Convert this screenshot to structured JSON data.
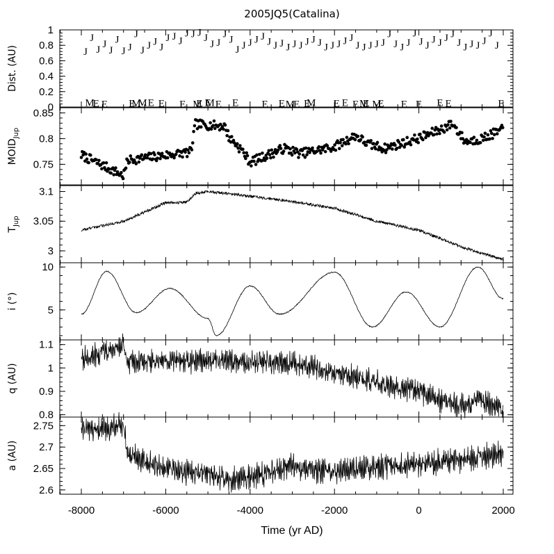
{
  "chart_data": {
    "type": "line",
    "title": "2005JQ5(Catalina)",
    "xlabel": "Time (yr AD)",
    "xlim": [
      -8000,
      2000
    ],
    "xticks": [
      -8000,
      -6000,
      -4000,
      -2000,
      0,
      2000
    ],
    "panels": [
      {
        "id": "dist",
        "ylabel": "Dist. (AU)",
        "type": "scatter",
        "ylim": [
          0,
          1
        ],
        "yticks": [
          0,
          0.2,
          0.4,
          0.6,
          0.8,
          1
        ],
        "series": [
          {
            "name": "J",
            "x": [
              -7900,
              -7750,
              -7600,
              -7450,
              -7300,
              -7150,
              -7000,
              -6850,
              -6700,
              -6550,
              -6400,
              -6250,
              -6100,
              -5950,
              -5800,
              -5650,
              -5500,
              -5350,
              -5200,
              -5050,
              -4900,
              -4750,
              -4600,
              -4450,
              -4300,
              -4150,
              -4000,
              -3850,
              -3700,
              -3550,
              -3400,
              -3250,
              -3100,
              -2950,
              -2800,
              -2650,
              -2500,
              -2350,
              -2200,
              -2050,
              -1900,
              -1750,
              -1600,
              -1450,
              -1300,
              -1150,
              -1000,
              -850,
              -700,
              -550,
              -400,
              -250,
              -100,
              50,
              200,
              350,
              500,
              650,
              800,
              950,
              1100,
              1250,
              1400,
              1550,
              1700,
              1850
            ],
            "y": [
              0.72,
              0.9,
              0.75,
              0.82,
              0.74,
              0.88,
              0.73,
              0.78,
              0.95,
              0.74,
              0.8,
              0.85,
              0.78,
              0.9,
              0.92,
              0.86,
              0.96,
              0.95,
              0.97,
              0.9,
              0.82,
              0.84,
              0.95,
              0.88,
              0.75,
              0.8,
              0.84,
              0.88,
              0.92,
              0.85,
              0.8,
              0.83,
              0.78,
              0.82,
              0.8,
              0.85,
              0.88,
              0.84,
              0.78,
              0.8,
              0.82,
              0.86,
              0.9,
              0.8,
              0.78,
              0.8,
              0.82,
              0.84,
              0.95,
              0.82,
              0.78,
              0.84,
              0.96,
              0.85,
              0.8,
              0.88,
              0.84,
              0.9,
              0.95,
              0.84,
              0.78,
              0.82,
              0.8,
              0.86,
              0.96,
              0.8
            ]
          },
          {
            "name": "M",
            "x": [
              -7800,
              -6700,
              -6550,
              -5250,
              -4950,
              -3050,
              -2550,
              -1300,
              -1000
            ],
            "y": [
              0.06,
              0.05,
              0.06,
              0.04,
              0.06,
              0.04,
              0.06,
              0.05,
              0.04
            ]
          },
          {
            "name": "E",
            "x": [
              -7650,
              -7450,
              -6800,
              -6350,
              -6100,
              -5600,
              -5200,
              -5000,
              -4750,
              -4350,
              -3650,
              -3250,
              -2900,
              -2650,
              -1950,
              -1750,
              -1500,
              -1250,
              -900,
              -350,
              0,
              500,
              700,
              1950
            ],
            "y": [
              0.05,
              0.04,
              0.05,
              0.06,
              0.05,
              0.04,
              0.05,
              0.06,
              0.04,
              0.06,
              0.04,
              0.05,
              0.04,
              0.05,
              0.05,
              0.06,
              0.04,
              0.05,
              0.05,
              0.04,
              0.04,
              0.06,
              0.05,
              0.05
            ]
          }
        ]
      },
      {
        "id": "moid",
        "ylabel": "MOID",
        "ylabel_sub": "Jup",
        "type": "scatter",
        "ylim": [
          0.71,
          0.86
        ],
        "yticks": [
          0.75,
          0.8,
          0.85
        ],
        "x": [
          -8000,
          -7000,
          -6900,
          -5400,
          -5300,
          -4600,
          -4500,
          -4200,
          -4000,
          -3200,
          -2800,
          -2000,
          -1500,
          -1200,
          -800,
          0,
          500,
          800,
          1100,
          1500,
          2000
        ],
        "y": [
          0.768,
          0.728,
          0.758,
          0.774,
          0.828,
          0.824,
          0.803,
          0.778,
          0.754,
          0.781,
          0.771,
          0.784,
          0.806,
          0.789,
          0.781,
          0.801,
          0.817,
          0.829,
          0.794,
          0.8,
          0.818
        ]
      },
      {
        "id": "tjup",
        "ylabel": "T",
        "ylabel_sub": "Jup",
        "type": "line",
        "ylim": [
          2.98,
          3.11
        ],
        "yticks": [
          3,
          3.05,
          3.1
        ],
        "x": [
          -8000,
          -7000,
          -6000,
          -5500,
          -5300,
          -5000,
          -4000,
          -3000,
          -2000,
          -1000,
          0,
          1000,
          2000
        ],
        "y": [
          3.035,
          3.05,
          3.081,
          3.082,
          3.097,
          3.1,
          3.092,
          3.083,
          3.072,
          3.05,
          3.035,
          3.007,
          2.985
        ]
      },
      {
        "id": "incl",
        "ylabel": "i (°)",
        "type": "line",
        "ylim": [
          1.5,
          10.5
        ],
        "yticks": [
          5,
          10
        ],
        "x": [
          -8000,
          -7400,
          -6700,
          -5900,
          -5000,
          -4800,
          -4000,
          -3300,
          -2000,
          -1100,
          -300,
          500,
          1400,
          2000
        ],
        "y": [
          4.5,
          9.5,
          4.7,
          7.5,
          4.0,
          2.0,
          7.8,
          4.5,
          9.4,
          3.0,
          7.1,
          3.0,
          10.0,
          6.3
        ]
      },
      {
        "id": "q",
        "ylabel": "q (AU)",
        "type": "line",
        "ylim": [
          0.79,
          1.12
        ],
        "yticks": [
          0.8,
          0.9,
          1,
          1.1
        ],
        "x": [
          -8000,
          -7000,
          -6900,
          -5000,
          -3000,
          -2000,
          -1000,
          0,
          500,
          1000,
          1500,
          2000
        ],
        "y": [
          1.04,
          1.09,
          1.03,
          1.03,
          1.02,
          0.98,
          0.94,
          0.9,
          0.86,
          0.84,
          0.86,
          0.82
        ]
      },
      {
        "id": "a",
        "ylabel": "a (AU)",
        "type": "line",
        "ylim": [
          2.59,
          2.77
        ],
        "yticks": [
          2.6,
          2.65,
          2.7,
          2.75
        ],
        "x": [
          -8000,
          -7000,
          -6900,
          -6000,
          -5000,
          -4500,
          -4000,
          -3000,
          -2000,
          -1000,
          0,
          1000,
          2000
        ],
        "y": [
          2.74,
          2.75,
          2.685,
          2.65,
          2.635,
          2.625,
          2.63,
          2.655,
          2.64,
          2.655,
          2.66,
          2.67,
          2.685
        ]
      }
    ]
  }
}
